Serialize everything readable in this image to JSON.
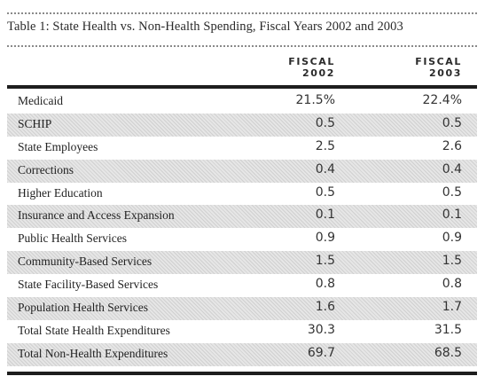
{
  "table": {
    "title": "Table 1: State Health vs. Non-Health Spending, Fiscal Years 2002 and 2003",
    "columns": [
      {
        "line1": "FISCAL",
        "line2": "2002"
      },
      {
        "line1": "FISCAL",
        "line2": "2003"
      }
    ],
    "rows": [
      {
        "label": "Medicaid",
        "fy2002": "21.5%",
        "fy2003": "22.4%"
      },
      {
        "label": "SCHIP",
        "fy2002": "0.5",
        "fy2003": "0.5"
      },
      {
        "label": "State Employees",
        "fy2002": "2.5",
        "fy2003": "2.6"
      },
      {
        "label": "Corrections",
        "fy2002": "0.4",
        "fy2003": "0.4"
      },
      {
        "label": "Higher Education",
        "fy2002": "0.5",
        "fy2003": "0.5"
      },
      {
        "label": "Insurance and Access Expansion",
        "fy2002": "0.1",
        "fy2003": "0.1"
      },
      {
        "label": "Public Health Services",
        "fy2002": "0.9",
        "fy2003": "0.9"
      },
      {
        "label": "Community-Based Services",
        "fy2002": "1.5",
        "fy2003": "1.5"
      },
      {
        "label": "State Facility-Based Services",
        "fy2002": "0.8",
        "fy2003": "0.8"
      },
      {
        "label": "Population Health Services",
        "fy2002": "1.6",
        "fy2003": "1.7"
      },
      {
        "label": "Total State Health Expenditures",
        "fy2002": "30.3",
        "fy2003": "31.5"
      },
      {
        "label": "Total Non-Health Expenditures",
        "fy2002": "69.7",
        "fy2003": "68.5"
      }
    ]
  }
}
